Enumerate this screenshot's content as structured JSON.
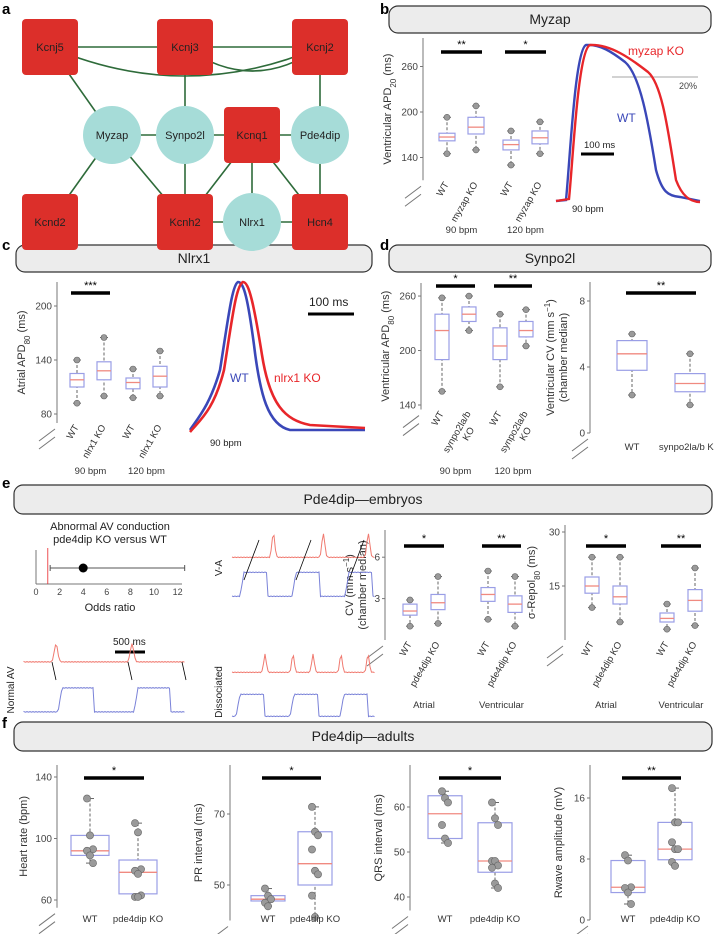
{
  "panel_labels": [
    "a",
    "b",
    "c",
    "d",
    "e",
    "f"
  ],
  "colors": {
    "node_gene": "#dc2f2a",
    "node_circle": "#a6dcd8",
    "edge": "#2e6b3a",
    "wt": "#3a47b8",
    "ko": "#e8262a",
    "box": "#9a9ee6",
    "median": "#f08a80",
    "point": "#9a9a9a"
  },
  "network": {
    "nodes": [
      {
        "id": "Kcnj5",
        "shape": "square"
      },
      {
        "id": "Kcnj3",
        "shape": "square"
      },
      {
        "id": "Kcnj2",
        "shape": "square"
      },
      {
        "id": "Myzap",
        "shape": "circle"
      },
      {
        "id": "Synpo2l",
        "shape": "circle"
      },
      {
        "id": "Kcnq1",
        "shape": "square"
      },
      {
        "id": "Pde4dip",
        "shape": "circle"
      },
      {
        "id": "Kcnd2",
        "shape": "square"
      },
      {
        "id": "Kcnh2",
        "shape": "square"
      },
      {
        "id": "Nlrx1",
        "shape": "circle"
      },
      {
        "id": "Hcn4",
        "shape": "square"
      }
    ],
    "edges": [
      [
        "Kcnj5",
        "Kcnj3"
      ],
      [
        "Kcnj3",
        "Kcnj2"
      ],
      [
        "Kcnj5",
        "Myzap"
      ],
      [
        "Kcnj3",
        "Synpo2l"
      ],
      [
        "Kcnj2",
        "Pde4dip"
      ],
      [
        "Myzap",
        "Synpo2l"
      ],
      [
        "Synpo2l",
        "Kcnq1"
      ],
      [
        "Kcnq1",
        "Pde4dip"
      ],
      [
        "Myzap",
        "Kcnd2"
      ],
      [
        "Myzap",
        "Kcnh2"
      ],
      [
        "Synpo2l",
        "Kcnh2"
      ],
      [
        "Kcnq1",
        "Kcnh2"
      ],
      [
        "Kcnq1",
        "Nlrx1"
      ],
      [
        "Kcnq1",
        "Hcn4"
      ],
      [
        "Kcnh2",
        "Nlrx1"
      ],
      [
        "Nlrx1",
        "Hcn4"
      ],
      [
        "Pde4dip",
        "Hcn4"
      ]
    ],
    "curved_edges": [
      [
        "Kcnj5",
        "Kcnj2"
      ],
      [
        "Kcnj3",
        "Kcnj2"
      ]
    ]
  },
  "headers": {
    "b": "Myzap",
    "c": "Nlrx1",
    "d": "Synpo2l",
    "e": "Pde4dip—embryos",
    "f": "Pde4dip—adults"
  },
  "traces": {
    "b": {
      "ko_label": "myzap KO",
      "wt_label": "WT",
      "threshold_label": "20%",
      "scale_label": "100 ms",
      "rate_label": "90 bpm"
    },
    "c": {
      "ko_label": "nlrx1 KO",
      "wt_label": "WT",
      "scale_label": "100 ms",
      "rate_label": "90 bpm"
    },
    "e": {
      "normal_label": "Normal AV",
      "va_label": "V-A",
      "dissociated_label": "Dissociated",
      "scale_label": "500 ms"
    }
  },
  "forest": {
    "title1": "Abnormal AV conduction",
    "title2": "pde4dip KO versus WT",
    "xlabel": "Odds ratio",
    "ticks": [
      0,
      2,
      4,
      6,
      8,
      10,
      12
    ],
    "estimate": 4.0,
    "ci": [
      1.2,
      12.6
    ],
    "reference": 1
  },
  "chart_data": [
    {
      "id": "b",
      "type": "box",
      "ylabel": [
        "Ventricular APD",
        "20",
        " (ms)"
      ],
      "yticks": [
        140,
        200,
        260
      ],
      "ylim": [
        110,
        285
      ],
      "groups": [
        {
          "label": "WT",
          "stats": [
            145,
            162,
            167,
            172,
            193
          ]
        },
        {
          "label": "myzap KO",
          "stats": [
            150,
            171,
            180,
            193,
            208
          ]
        },
        {
          "label": "WT",
          "stats": [
            130,
            150,
            157,
            163,
            175
          ]
        },
        {
          "label": "myzap KO",
          "stats": [
            145,
            158,
            166,
            175,
            187
          ]
        }
      ],
      "rates": [
        "90 bpm",
        "120 bpm"
      ],
      "significance": [
        {
          "pair": [
            0,
            1
          ],
          "label": "**"
        },
        {
          "pair": [
            2,
            3
          ],
          "label": "*"
        }
      ]
    },
    {
      "id": "c",
      "type": "box",
      "ylabel": [
        "Atrial APD",
        "80",
        " (ms)"
      ],
      "yticks": [
        80,
        140,
        200
      ],
      "ylim": [
        70,
        230
      ],
      "groups": [
        {
          "label": "WT",
          "stats": [
            92,
            110,
            118,
            125,
            140
          ]
        },
        {
          "label": "nlrx1 KO",
          "stats": [
            100,
            118,
            128,
            138,
            165
          ]
        },
        {
          "label": "WT",
          "stats": [
            98,
            108,
            115,
            120,
            130
          ]
        },
        {
          "label": "nlrx1 KO",
          "stats": [
            100,
            110,
            122,
            133,
            150
          ]
        }
      ],
      "rates": [
        "90 bpm",
        "120 bpm"
      ],
      "significance": [
        {
          "pair": [
            0,
            1
          ],
          "label": "***"
        }
      ]
    },
    {
      "id": "d1",
      "type": "box",
      "ylabel": [
        "Ventricular APD",
        "80",
        " (ms)"
      ],
      "yticks": [
        140,
        200,
        260
      ],
      "ylim": [
        135,
        265
      ],
      "groups": [
        {
          "label": "WT",
          "stats": [
            155,
            190,
            222,
            240,
            258
          ]
        },
        {
          "label": "synpo2la/b KO",
          "stats": [
            222,
            232,
            240,
            248,
            260
          ]
        },
        {
          "label": "WT",
          "stats": [
            160,
            190,
            205,
            225,
            240
          ]
        },
        {
          "label": "synpo2la/b KO",
          "stats": [
            205,
            215,
            222,
            232,
            245
          ]
        }
      ],
      "rates": [
        "90 bpm",
        "120 bpm"
      ],
      "significance": [
        {
          "pair": [
            0,
            1
          ],
          "label": "*"
        },
        {
          "pair": [
            2,
            3
          ],
          "label": "**"
        }
      ]
    },
    {
      "id": "d2",
      "type": "box",
      "ylabel": [
        "Ventricular CV (mm s",
        "−1",
        ")"
      ],
      "ylabel2": "(chamber median)",
      "yticks": [
        0,
        4,
        8
      ],
      "ylim": [
        0,
        9.5
      ],
      "groups": [
        {
          "label": "WT",
          "stats": [
            2.3,
            3.8,
            4.8,
            5.6,
            6.0
          ]
        },
        {
          "label": "synpo2la/b KO",
          "stats": [
            1.7,
            2.5,
            3.0,
            3.6,
            4.8
          ]
        }
      ],
      "significance": [
        {
          "pair": [
            0,
            1
          ],
          "label": "**"
        }
      ]
    },
    {
      "id": "e1",
      "type": "box",
      "ylabel": [
        "CV (mm s",
        "−1",
        ")"
      ],
      "ylabel2": "(chamber median)",
      "yticks": [
        3,
        6
      ],
      "ylim": [
        0,
        7.3
      ],
      "groups": [
        {
          "label": "WT",
          "stats": [
            1.0,
            1.8,
            2.1,
            2.6,
            2.9
          ]
        },
        {
          "label": "pde4dip KO",
          "stats": [
            1.2,
            2.2,
            2.7,
            3.3,
            4.6
          ]
        },
        {
          "label": "WT",
          "stats": [
            1.5,
            2.8,
            3.3,
            3.8,
            5.0
          ]
        },
        {
          "label": "pde4dip KO",
          "stats": [
            1.0,
            2.0,
            2.6,
            3.2,
            4.6
          ]
        }
      ],
      "chambers": [
        "Atrial",
        "Ventricular"
      ],
      "significance": [
        {
          "pair": [
            0,
            1
          ],
          "label": "*"
        },
        {
          "pair": [
            2,
            3
          ],
          "label": "**"
        }
      ]
    },
    {
      "id": "e2",
      "type": "box",
      "ylabel": [
        "σ-Repol",
        "80",
        " (ms)"
      ],
      "yticks": [
        15,
        30
      ],
      "ylim": [
        0,
        32
      ],
      "groups": [
        {
          "label": "WT",
          "stats": [
            9,
            13,
            15,
            17.5,
            23
          ]
        },
        {
          "label": "pde4dip KO",
          "stats": [
            5,
            10,
            12,
            15,
            23
          ]
        },
        {
          "label": "WT",
          "stats": [
            3,
            5,
            6,
            7.5,
            10
          ]
        },
        {
          "label": "pde4dip KO",
          "stats": [
            4,
            8,
            11,
            14,
            20
          ]
        }
      ],
      "chambers": [
        "Atrial",
        "Ventricular"
      ],
      "significance": [
        {
          "pair": [
            0,
            1
          ],
          "label": "*"
        },
        {
          "pair": [
            2,
            3
          ],
          "label": "**"
        }
      ]
    },
    {
      "id": "f1",
      "type": "box",
      "ylabel": [
        "Heart rate (bpm)",
        "",
        ""
      ],
      "yticks": [
        60,
        100,
        140
      ],
      "ylim": [
        55,
        150
      ],
      "groups": [
        {
          "label": "WT",
          "stats": [
            84,
            89,
            92,
            102,
            126
          ],
          "points": [
            126,
            102,
            93,
            92,
            89,
            84
          ]
        },
        {
          "label": "pde4dip KO",
          "stats": [
            62,
            64,
            78,
            86,
            110
          ],
          "points": [
            110,
            104,
            80,
            79,
            77,
            63,
            62,
            62
          ]
        }
      ],
      "significance": [
        {
          "pair": [
            0,
            1
          ],
          "label": "*"
        }
      ]
    },
    {
      "id": "f2",
      "type": "box",
      "ylabel": [
        "PR interval (ms)",
        "",
        ""
      ],
      "yticks": [
        50,
        70
      ],
      "ylim": [
        40,
        86
      ],
      "groups": [
        {
          "label": "WT",
          "stats": [
            44,
            45.5,
            46,
            47,
            49
          ],
          "points": [
            49,
            47,
            46,
            45,
            44
          ]
        },
        {
          "label": "pde4dip KO",
          "stats": [
            41,
            50,
            56,
            65,
            72
          ],
          "points": [
            72,
            65,
            64,
            60,
            54,
            53,
            47,
            41
          ]
        }
      ],
      "significance": [
        {
          "pair": [
            0,
            1
          ],
          "label": "*"
        }
      ]
    },
    {
      "id": "f3",
      "type": "box",
      "ylabel": [
        "QRS interval (ms)",
        "",
        ""
      ],
      "yticks": [
        40,
        50,
        60
      ],
      "ylim": [
        37,
        70
      ],
      "groups": [
        {
          "label": "WT",
          "stats": [
            52,
            53,
            58.5,
            62.5,
            63.5
          ],
          "points": [
            63.5,
            62,
            61,
            56,
            53,
            52
          ]
        },
        {
          "label": "pde4dip KO",
          "stats": [
            42,
            45.5,
            48,
            56.5,
            61
          ],
          "points": [
            61,
            57.5,
            56,
            48,
            48,
            47,
            46.5,
            43,
            42
          ]
        }
      ],
      "significance": [
        {
          "pair": [
            0,
            1
          ],
          "label": "*"
        }
      ]
    },
    {
      "id": "f4",
      "type": "box",
      "ylabel": [
        "Rwave amplitude (mV)",
        "",
        ""
      ],
      "yticks": [
        0,
        8,
        16
      ],
      "ylim": [
        0,
        20
      ],
      "groups": [
        {
          "label": "WT",
          "stats": [
            2.1,
            3.6,
            4.3,
            7.8,
            8.5
          ],
          "points": [
            8.5,
            7.8,
            4.3,
            4.2,
            3.6,
            2.1
          ]
        },
        {
          "label": "pde4dip KO",
          "stats": [
            7.1,
            7.9,
            9.3,
            12.8,
            17.3
          ],
          "points": [
            17.3,
            12.8,
            12.8,
            10.2,
            9.3,
            9.3,
            7.6,
            7.1
          ]
        }
      ],
      "significance": [
        {
          "pair": [
            0,
            1
          ],
          "label": "**"
        }
      ]
    }
  ]
}
